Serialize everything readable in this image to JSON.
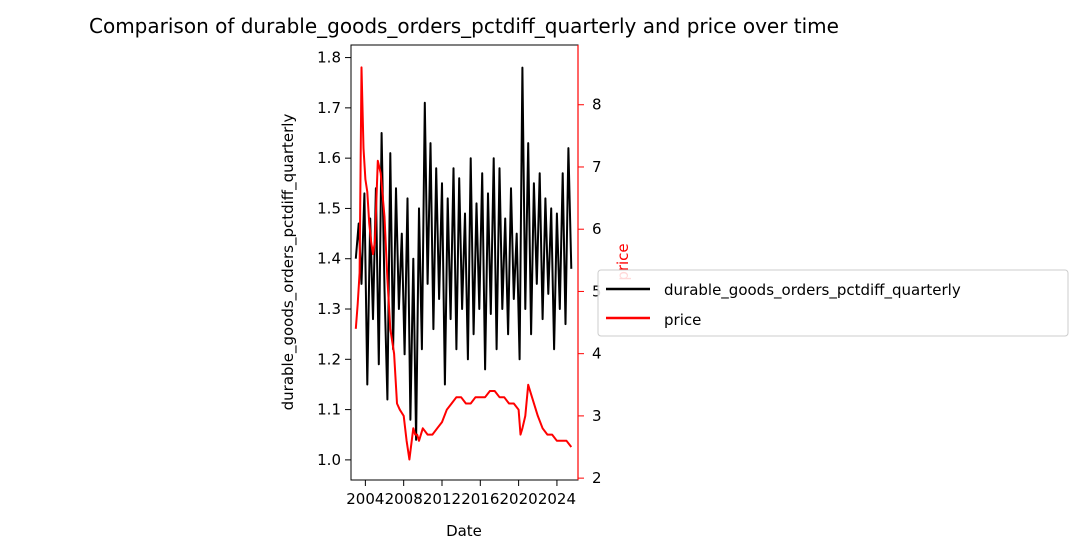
{
  "chart_data": {
    "type": "line",
    "title": "Comparison of durable_goods_orders_pctdiff_quarterly and price over time",
    "xlabel": "Date",
    "ylabel_left": "durable_goods_orders_pctdiff_quarterly",
    "ylabel_right": "price",
    "xlim": [
      2002.5,
      2026.2
    ],
    "ylim_left": [
      0.96,
      1.825
    ],
    "ylim_right": [
      1.97,
      8.96
    ],
    "x_ticks": [
      2004,
      2008,
      2012,
      2016,
      2020,
      2024
    ],
    "x_tick_labels": [
      "2004",
      "2008",
      "2012",
      "2016",
      "2020",
      "2024"
    ],
    "y_left_ticks": [
      1.0,
      1.1,
      1.2,
      1.3,
      1.4,
      1.5,
      1.6,
      1.7,
      1.8
    ],
    "y_left_tick_labels": [
      "1.0",
      "1.1",
      "1.2",
      "1.3",
      "1.4",
      "1.5",
      "1.6",
      "1.7",
      "1.8"
    ],
    "y_right_ticks": [
      2,
      3,
      4,
      5,
      6,
      7,
      8
    ],
    "y_right_tick_labels": [
      "2",
      "3",
      "4",
      "5",
      "6",
      "7",
      "8"
    ],
    "legend_position": "center-right-outside",
    "colors": {
      "durable": "#000000",
      "price": "#ff0000"
    },
    "series": [
      {
        "name": "durable_goods_orders_pctdiff_quarterly",
        "axis": "left",
        "color": "#000000",
        "x": [
          2003.0,
          2003.3,
          2003.6,
          2003.9,
          2004.2,
          2004.5,
          2004.8,
          2005.1,
          2005.4,
          2005.7,
          2006.0,
          2006.3,
          2006.6,
          2006.9,
          2007.2,
          2007.5,
          2007.8,
          2008.1,
          2008.4,
          2008.7,
          2009.0,
          2009.3,
          2009.6,
          2009.9,
          2010.2,
          2010.5,
          2010.8,
          2011.1,
          2011.4,
          2011.7,
          2012.0,
          2012.3,
          2012.6,
          2012.9,
          2013.2,
          2013.5,
          2013.8,
          2014.1,
          2014.4,
          2014.7,
          2015.0,
          2015.3,
          2015.6,
          2015.9,
          2016.2,
          2016.5,
          2016.8,
          2017.1,
          2017.4,
          2017.7,
          2018.0,
          2018.3,
          2018.6,
          2018.9,
          2019.2,
          2019.5,
          2019.8,
          2020.1,
          2020.4,
          2020.7,
          2021.0,
          2021.3,
          2021.6,
          2021.9,
          2022.2,
          2022.5,
          2022.8,
          2023.1,
          2023.4,
          2023.7,
          2024.0,
          2024.3,
          2024.6,
          2024.9,
          2025.2,
          2025.5
        ],
        "values": [
          1.4,
          1.47,
          1.35,
          1.53,
          1.15,
          1.48,
          1.28,
          1.54,
          1.19,
          1.65,
          1.34,
          1.12,
          1.61,
          1.22,
          1.54,
          1.3,
          1.45,
          1.21,
          1.52,
          1.08,
          1.4,
          1.04,
          1.5,
          1.22,
          1.71,
          1.35,
          1.63,
          1.26,
          1.58,
          1.32,
          1.55,
          1.15,
          1.52,
          1.28,
          1.58,
          1.22,
          1.56,
          1.3,
          1.49,
          1.2,
          1.6,
          1.25,
          1.51,
          1.3,
          1.57,
          1.18,
          1.53,
          1.29,
          1.6,
          1.22,
          1.58,
          1.3,
          1.48,
          1.25,
          1.54,
          1.32,
          1.45,
          1.2,
          1.78,
          1.3,
          1.63,
          1.25,
          1.55,
          1.35,
          1.57,
          1.28,
          1.52,
          1.33,
          1.5,
          1.22,
          1.49,
          1.3,
          1.57,
          1.27,
          1.62,
          1.38
        ]
      },
      {
        "name": "price",
        "axis": "right",
        "color": "#ff0000",
        "x": [
          2003.0,
          2003.2,
          2003.4,
          2003.6,
          2003.8,
          2004.0,
          2004.2,
          2004.4,
          2004.6,
          2004.8,
          2005.0,
          2005.3,
          2005.6,
          2006.0,
          2006.3,
          2006.6,
          2007.0,
          2007.3,
          2007.6,
          2008.0,
          2008.3,
          2008.6,
          2009.0,
          2009.2,
          2009.4,
          2009.6,
          2010.0,
          2010.5,
          2011.0,
          2011.5,
          2012.0,
          2012.5,
          2013.0,
          2013.5,
          2014.0,
          2014.5,
          2015.0,
          2015.5,
          2016.0,
          2016.5,
          2017.0,
          2017.5,
          2018.0,
          2018.5,
          2019.0,
          2019.5,
          2020.0,
          2020.2,
          2020.4,
          2020.7,
          2021.0,
          2021.4,
          2022.0,
          2022.5,
          2023.0,
          2023.5,
          2024.0,
          2024.5,
          2025.0,
          2025.5
        ],
        "values": [
          4.4,
          4.8,
          5.3,
          8.6,
          7.3,
          6.8,
          6.6,
          6.1,
          5.8,
          5.6,
          5.8,
          7.1,
          6.9,
          6.2,
          5.2,
          4.4,
          4.0,
          3.2,
          3.1,
          3.0,
          2.6,
          2.3,
          2.8,
          2.7,
          2.7,
          2.6,
          2.8,
          2.7,
          2.7,
          2.8,
          2.9,
          3.1,
          3.2,
          3.3,
          3.3,
          3.2,
          3.2,
          3.3,
          3.3,
          3.3,
          3.4,
          3.4,
          3.3,
          3.3,
          3.2,
          3.2,
          3.1,
          2.7,
          2.8,
          3.0,
          3.5,
          3.3,
          3.0,
          2.8,
          2.7,
          2.7,
          2.6,
          2.6,
          2.6,
          2.5
        ]
      }
    ]
  }
}
